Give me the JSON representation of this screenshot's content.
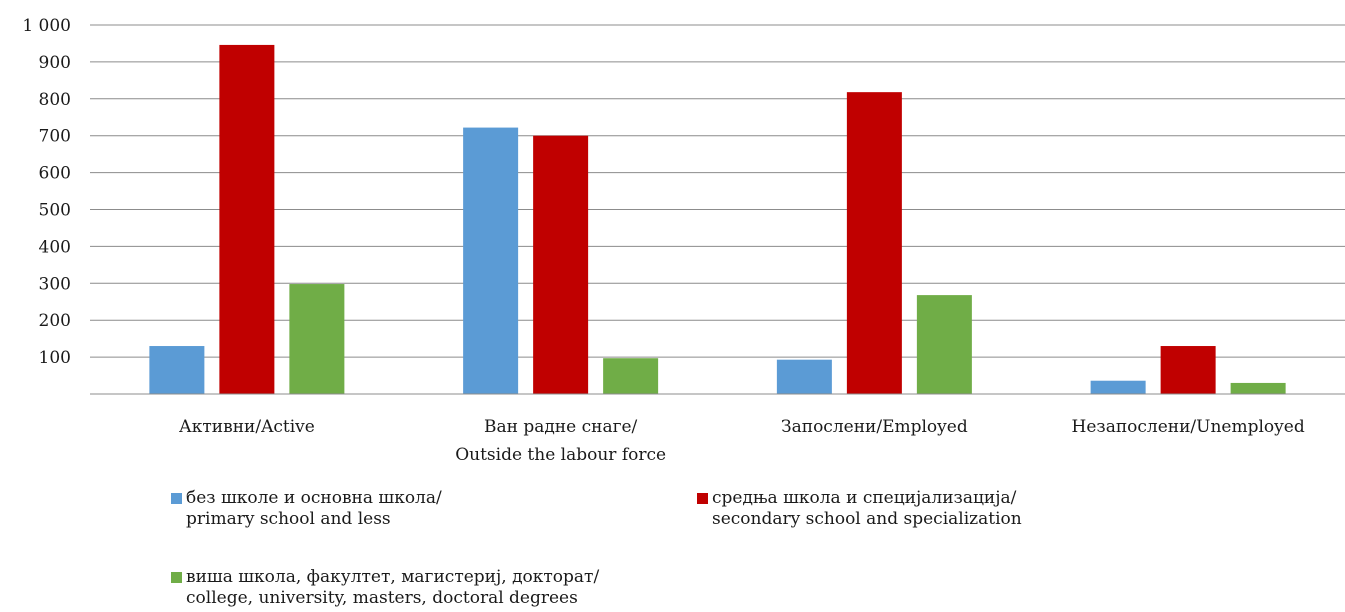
{
  "chart_data": {
    "type": "bar",
    "categories": [
      [
        "Активни/Active"
      ],
      [
        "Ван радне снаге/",
        "Outside the labour force"
      ],
      [
        "Запослени/Employed"
      ],
      [
        "Незапослени/Unemployed"
      ]
    ],
    "series": [
      {
        "name": "без школе и основна школа/\nprimary school and less",
        "name_lines": [
          "без школе и основна школа/",
          "primary school and less"
        ],
        "color": "#5b9bd5",
        "values": [
          130,
          722,
          93,
          36
        ]
      },
      {
        "name": "средња школа и специјализација/\nsecondary school and specialization",
        "name_lines": [
          "средња школа и специјализација/",
          "secondary school and specialization"
        ],
        "color": "#c00000",
        "values": [
          946,
          700,
          818,
          130
        ]
      },
      {
        "name": "виша школа, факултет, магистериј, докторат/\ncollege, university, masters, doctoral degrees",
        "name_lines": [
          "виша школа, факултет, магистериј, докторат/",
          "college, university, masters, doctoral degrees"
        ],
        "color": "#70ad47",
        "values": [
          298,
          97,
          268,
          30
        ]
      }
    ],
    "yticks": [
      "100",
      "200",
      "300",
      "400",
      "500",
      "600",
      "700",
      "800",
      "900",
      "1 000"
    ],
    "ytick_values": [
      100,
      200,
      300,
      400,
      500,
      600,
      700,
      800,
      900,
      1000
    ],
    "ylim": [
      0,
      1000
    ],
    "grid": true,
    "legend_position": "bottom",
    "title": "",
    "xlabel": "",
    "ylabel": ""
  }
}
